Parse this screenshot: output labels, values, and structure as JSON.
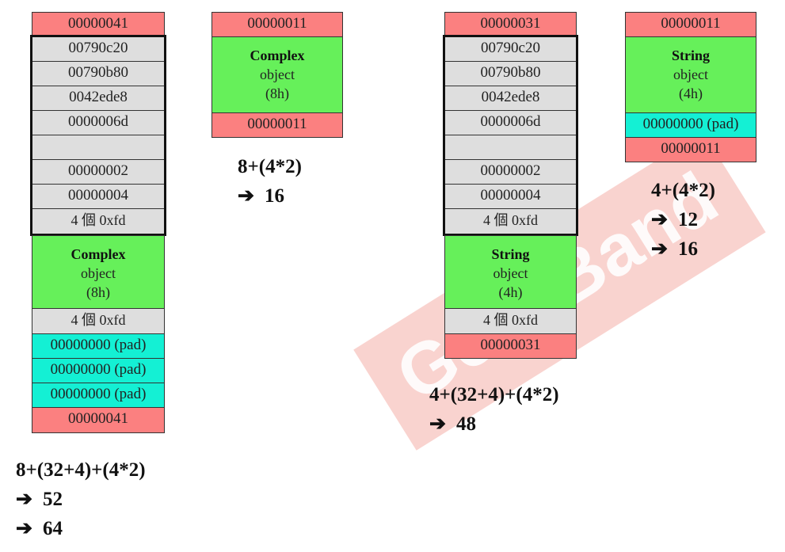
{
  "watermark": {
    "text": "GeekBand",
    "icon": "geekband-logo"
  },
  "blocks": [
    {
      "id": "complex-debug",
      "cookie_top": "00000041",
      "debug_header": [
        "00790c20",
        "00790b80",
        "0042ede8",
        "0000006d",
        "",
        "00000002",
        "00000004"
      ],
      "no_mans_land_top": "4 個 0xfd",
      "object": {
        "title": "Complex",
        "word": "object",
        "size": "(8h)"
      },
      "no_mans_land_bottom": "4 個 0xfd",
      "pads": [
        "00000000 (pad)",
        "00000000 (pad)",
        "00000000 (pad)"
      ],
      "cookie_bottom": "00000041",
      "calc": [
        "8+(32+4)+(4*2)",
        "52",
        "64"
      ]
    },
    {
      "id": "complex-release",
      "cookie_top": "00000011",
      "object": {
        "title": "Complex",
        "word": "object",
        "size": "(8h)"
      },
      "cookie_bottom": "00000011",
      "calc": [
        "8+(4*2)",
        "16"
      ]
    },
    {
      "id": "string-debug",
      "cookie_top": "00000031",
      "debug_header": [
        "00790c20",
        "00790b80",
        "0042ede8",
        "0000006d",
        "",
        "00000002",
        "00000004"
      ],
      "no_mans_land_top": "4 個 0xfd",
      "object": {
        "title": "String",
        "word": "object",
        "size": "(4h)"
      },
      "no_mans_land_bottom": "4 個 0xfd",
      "cookie_bottom": "00000031",
      "calc": [
        "4+(32+4)+(4*2)",
        "48"
      ]
    },
    {
      "id": "string-release",
      "cookie_top": "00000011",
      "object": {
        "title": "String",
        "word": "object",
        "size": "(4h)"
      },
      "pads": [
        "00000000 (pad)"
      ],
      "cookie_bottom": "00000011",
      "calc": [
        "4+(4*2)",
        "12",
        "16"
      ]
    }
  ]
}
